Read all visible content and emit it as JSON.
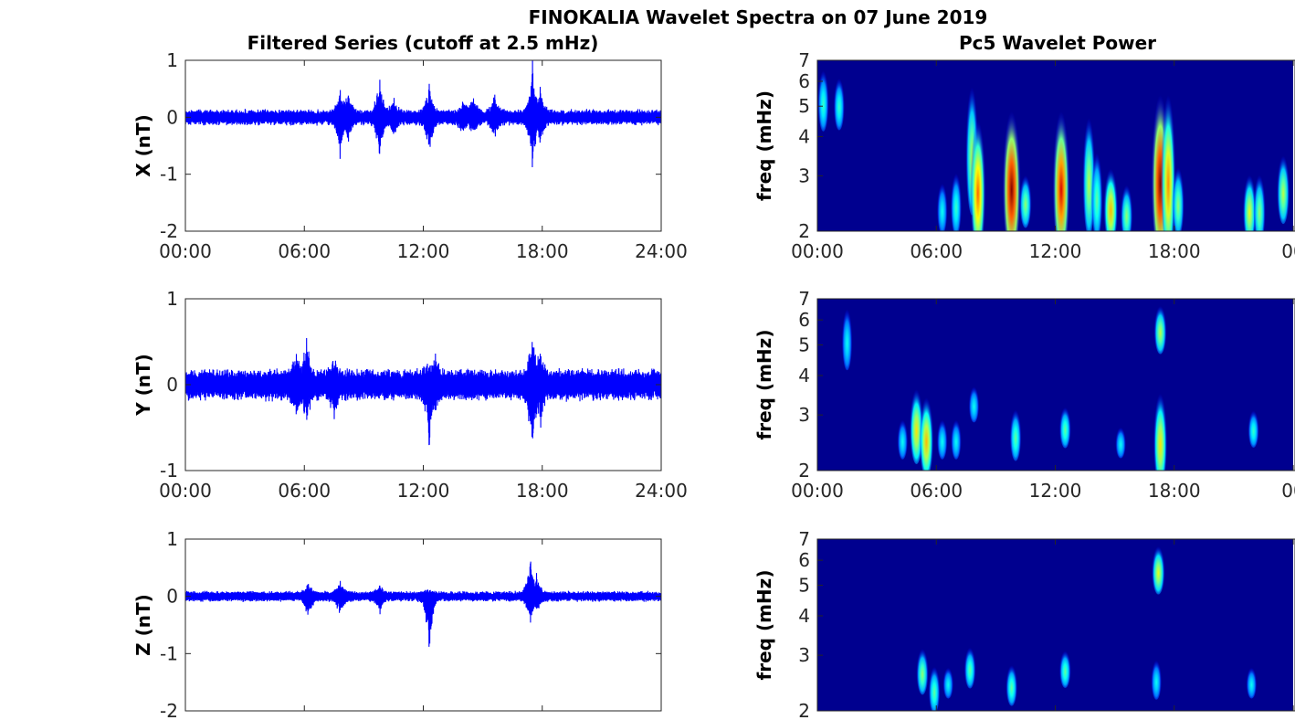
{
  "main_title": "FINOKALIA Wavelet Spectra on 07 June 2019",
  "chart_data": [
    {
      "type": "line",
      "title": "Filtered Series (cutoff at 2.5 mHz)",
      "ylabel": "X (nT)",
      "ylim": [
        -2,
        1
      ],
      "yticks": [
        "-2",
        "-1",
        "0",
        "1"
      ],
      "xlim_hours": [
        0,
        24
      ],
      "xticks": [
        "00:00",
        "06:00",
        "12:00",
        "18:00",
        "24:00"
      ],
      "color": "#0000ff",
      "noise_amplitude": 0.15,
      "events": [
        [
          7.8,
          0.5,
          -0.72
        ],
        [
          8.2,
          0.45,
          -0.4
        ],
        [
          9.8,
          0.85,
          -0.8
        ],
        [
          10.5,
          0.3,
          -0.3
        ],
        [
          12.3,
          0.6,
          -0.8
        ],
        [
          14.0,
          0.3,
          -0.3
        ],
        [
          14.5,
          0.4,
          -0.3
        ],
        [
          15.6,
          0.45,
          -0.35
        ],
        [
          17.5,
          0.95,
          -1.05
        ],
        [
          17.9,
          0.5,
          -0.5
        ]
      ]
    },
    {
      "type": "line",
      "ylabel": "Y (nT)",
      "ylim": [
        -1,
        1
      ],
      "yticks": [
        "-1",
        "0",
        "1"
      ],
      "xlim_hours": [
        0,
        24
      ],
      "xticks": [
        "00:00",
        "06:00",
        "12:00",
        "18:00",
        "24:00"
      ],
      "color": "#0000ff",
      "noise_amplitude": 0.2,
      "events": [
        [
          5.6,
          0.3,
          -0.3
        ],
        [
          6.1,
          0.45,
          -0.4
        ],
        [
          7.5,
          0.25,
          -0.3
        ],
        [
          12.3,
          0.2,
          -0.78
        ],
        [
          12.6,
          0.28,
          -0.2
        ],
        [
          17.5,
          0.57,
          -0.82
        ],
        [
          17.9,
          0.35,
          -0.4
        ]
      ]
    },
    {
      "type": "line",
      "ylabel": "Z (nT)",
      "ylim": [
        -2,
        1
      ],
      "yticks": [
        "-2",
        "-1",
        "0",
        "1"
      ],
      "xlim_hours": [
        0,
        24
      ],
      "xticks": [],
      "color": "#0000ff",
      "noise_amplitude": 0.1,
      "events": [
        [
          6.2,
          0.2,
          -0.45
        ],
        [
          7.8,
          0.3,
          -0.35
        ],
        [
          9.8,
          0.2,
          -0.3
        ],
        [
          12.3,
          0.1,
          -1.15
        ],
        [
          17.4,
          0.78,
          -0.55
        ],
        [
          17.7,
          0.4,
          -0.3
        ]
      ]
    },
    {
      "type": "heatmap",
      "title": "Pc5 Wavelet Power",
      "ylabel": "freq (mHz)",
      "ylim": [
        2,
        7
      ],
      "yscale": "log",
      "yticks": [
        "2",
        "3",
        "4",
        "5",
        "6",
        "7"
      ],
      "xlim_hours": [
        0,
        24
      ],
      "xticks": [
        "00:00",
        "06:00",
        "12:00",
        "18:00",
        "00"
      ],
      "colormap": "jet",
      "blobs": [
        [
          0.3,
          4.5,
          7,
          0.35
        ],
        [
          1.1,
          4.5,
          6.5,
          0.35
        ],
        [
          6.3,
          2.1,
          3.0,
          0.3
        ],
        [
          7.0,
          2.1,
          3.3,
          0.35
        ],
        [
          7.8,
          2.6,
          7,
          0.5
        ],
        [
          8.1,
          2.0,
          5.5,
          0.75
        ],
        [
          9.8,
          2.0,
          6,
          1.0
        ],
        [
          10.5,
          2.2,
          3.2,
          0.45
        ],
        [
          12.3,
          2.0,
          6,
          0.9
        ],
        [
          13.7,
          2.2,
          5.5,
          0.5
        ],
        [
          14.1,
          2.1,
          4,
          0.4
        ],
        [
          14.8,
          2.0,
          3.5,
          0.65
        ],
        [
          15.6,
          2.0,
          3.0,
          0.45
        ],
        [
          17.3,
          2.0,
          7,
          1.0
        ],
        [
          17.7,
          2.0,
          7,
          0.7
        ],
        [
          18.2,
          2.1,
          3.5,
          0.45
        ],
        [
          21.8,
          2.0,
          3.3,
          0.55
        ],
        [
          22.3,
          2.0,
          3.3,
          0.45
        ],
        [
          23.5,
          2.3,
          3.8,
          0.5
        ]
      ]
    },
    {
      "type": "heatmap",
      "ylabel": "freq (mHz)",
      "ylim": [
        2,
        7
      ],
      "yscale": "log",
      "yticks": [
        "2",
        "3",
        "4",
        "5",
        "6",
        "7"
      ],
      "xlim_hours": [
        0,
        24
      ],
      "xticks": [
        "00:00",
        "06:00",
        "12:00",
        "18:00",
        "00"
      ],
      "colormap": "jet",
      "blobs": [
        [
          1.5,
          4.5,
          7,
          0.3
        ],
        [
          4.3,
          2.3,
          3.0,
          0.3
        ],
        [
          5.0,
          2.3,
          4.0,
          0.6
        ],
        [
          5.5,
          2.1,
          3.8,
          0.65
        ],
        [
          6.3,
          2.3,
          3.0,
          0.3
        ],
        [
          7.0,
          2.3,
          3.0,
          0.3
        ],
        [
          7.9,
          3.0,
          3.8,
          0.3
        ],
        [
          10.0,
          2.3,
          3.3,
          0.4
        ],
        [
          12.5,
          2.5,
          3.3,
          0.4
        ],
        [
          15.3,
          2.3,
          2.8,
          0.3
        ],
        [
          17.3,
          2.0,
          4.0,
          0.6
        ],
        [
          17.3,
          5.0,
          7,
          0.5
        ],
        [
          22.0,
          2.5,
          3.2,
          0.35
        ]
      ]
    },
    {
      "type": "heatmap",
      "ylabel": "freq (mHz)",
      "ylim": [
        2,
        7
      ],
      "yscale": "log",
      "yticks": [
        "2",
        "3",
        "4",
        "5",
        "6",
        "7"
      ],
      "xlim_hours": [
        0,
        24
      ],
      "xticks": [],
      "colormap": "jet",
      "blobs": [
        [
          5.3,
          2.4,
          3.3,
          0.45
        ],
        [
          5.9,
          2.1,
          2.9,
          0.4
        ],
        [
          6.6,
          2.3,
          2.8,
          0.3
        ],
        [
          7.7,
          2.5,
          3.3,
          0.4
        ],
        [
          9.8,
          2.2,
          2.9,
          0.4
        ],
        [
          12.5,
          2.5,
          3.2,
          0.4
        ],
        [
          17.2,
          5.0,
          7,
          0.55
        ],
        [
          17.1,
          2.3,
          3.0,
          0.3
        ],
        [
          21.9,
          2.3,
          2.8,
          0.3
        ]
      ]
    }
  ]
}
